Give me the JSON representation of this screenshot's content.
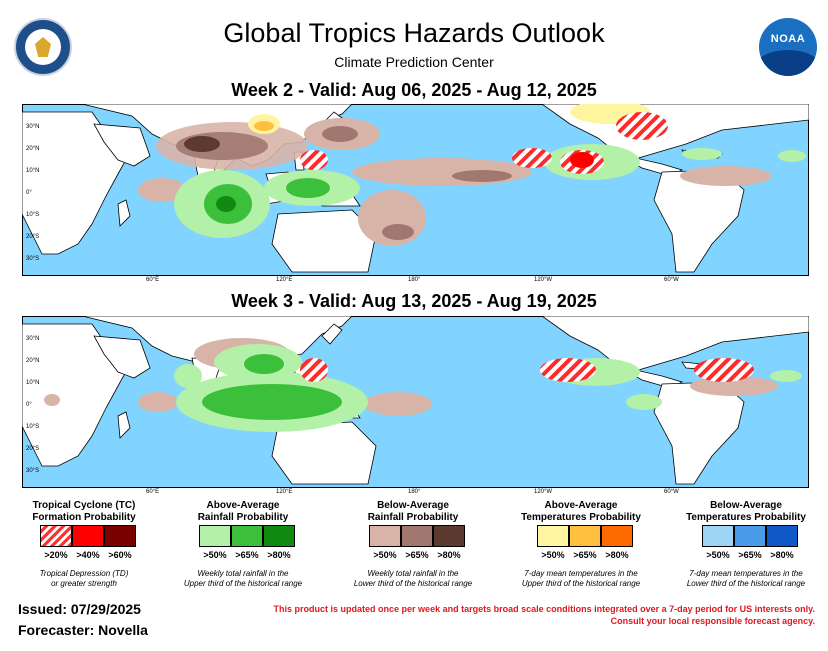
{
  "header": {
    "title": "Global Tropics Hazards Outlook",
    "subtitle": "Climate Prediction Center",
    "left_logo": "doc-seal-logo",
    "right_logo_text": "NOAA"
  },
  "week2": {
    "title": "Week 2 - Valid: Aug 06, 2025 - Aug 12, 2025"
  },
  "week3": {
    "title": "Week 3 - Valid: Aug 13, 2025 - Aug 19, 2025"
  },
  "axes": {
    "lat_labels": [
      "30°N",
      "20°N",
      "10°N",
      "0°",
      "10°S",
      "20°S",
      "30°S"
    ],
    "lon_labels": [
      "60°E",
      "120°E",
      "180°",
      "120°W",
      "60°W"
    ]
  },
  "colors": {
    "ocean": "#80d4ff",
    "land": "#ffffff",
    "tc20": "#ff3030",
    "tc40": "#ff0000",
    "tc60": "#7a0000",
    "rain_above_50": "#b3f0a8",
    "rain_above_65": "#3cc03c",
    "rain_above_80": "#108a10",
    "rain_below_50": "#d8b4a8",
    "rain_below_65": "#a07870",
    "rain_below_80": "#5c3a30",
    "temp_above_50": "#fff5a0",
    "temp_above_65": "#ffc040",
    "temp_above_80": "#ff6a00",
    "temp_below_50": "#9fd4f5",
    "temp_below_65": "#4a9ce8",
    "temp_below_80": "#1058c8"
  },
  "legend": [
    {
      "title": "Tropical Cyclone (TC)\nFormation Probability",
      "levels": [
        ">20%",
        ">40%",
        ">60%"
      ],
      "note": "Tropical Depression (TD)\nor greater strength"
    },
    {
      "title": "Above-Average\nRainfall Probability",
      "levels": [
        ">50%",
        ">65%",
        ">80%"
      ],
      "note": "Weekly total rainfall in the\nUpper third of the historical range"
    },
    {
      "title": "Below-Average\nRainfall Probability",
      "levels": [
        ">50%",
        ">65%",
        ">80%"
      ],
      "note": "Weekly total rainfall in the\nLower third of the historical range"
    },
    {
      "title": "Above-Average\nTemperatures Probability",
      "levels": [
        ">50%",
        ">65%",
        ">80%"
      ],
      "note": "7-day mean temperatures in the\nUpper third of the historical range"
    },
    {
      "title": "Below-Average\nTemperatures Probability",
      "levels": [
        ">50%",
        ">65%",
        ">80%"
      ],
      "note": "7-day mean temperatures in the\nLower third of the historical range"
    }
  ],
  "footer": {
    "issued": "Issued: 07/29/2025",
    "forecaster": "Forecaster: Novella",
    "disclaimer_line1": "This product is updated once per week and targets broad scale conditions integrated over a 7-day period for US interests only.",
    "disclaimer_line2": "Consult your local responsible forecast agency."
  }
}
